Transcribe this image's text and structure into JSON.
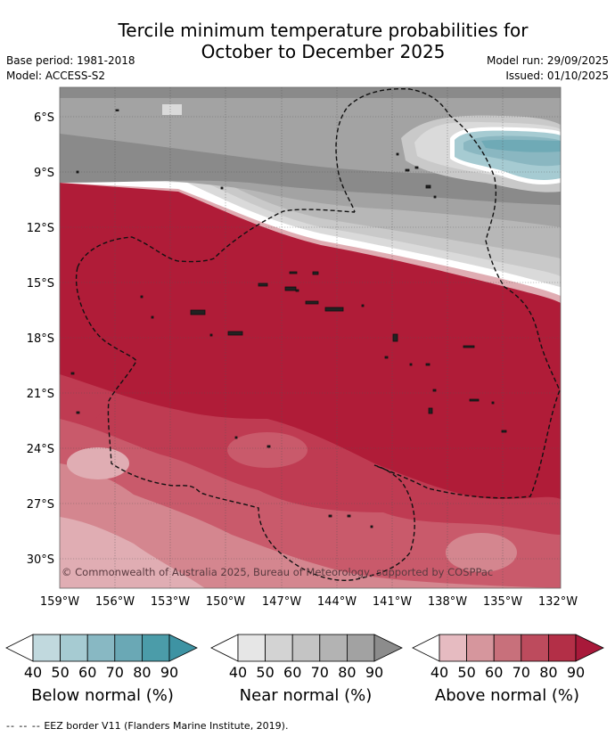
{
  "title": {
    "line1": "Tercile minimum temperature probabilities for",
    "line2": "October to December 2025"
  },
  "meta": {
    "base_period": "Base period: 1981-2018",
    "model": "Model: ACCESS-S2",
    "model_run": "Model run: 29/09/2025",
    "issued": "Issued: 01/10/2025"
  },
  "map": {
    "lat_labels": [
      "6°S",
      "9°S",
      "12°S",
      "15°S",
      "18°S",
      "21°S",
      "24°S",
      "27°S",
      "30°S"
    ],
    "lon_labels": [
      "159°W",
      "156°W",
      "153°W",
      "150°W",
      "147°W",
      "144°W",
      "141°W",
      "138°W",
      "135°W",
      "132°W"
    ],
    "copyright": "© Commonwealth of Australia 2025, Bureau of Meteorology, supported by COSPPac",
    "colors": {
      "above_90": "#b01c38",
      "above_80": "#bf3b52",
      "above_70": "#c95a6b",
      "above_60": "#d4868f",
      "above_50": "#e0adb3",
      "near_90": "#8a8a8a",
      "near_80": "#a3a3a3",
      "near_70": "#b7b7b7",
      "near_60": "#c9c9c9",
      "near_50": "#dadada",
      "below_60": "#8ab7c1",
      "below_70": "#6faab6",
      "below_80": "#4e9cab"
    }
  },
  "legends": [
    {
      "label": "Below normal (%)",
      "ticks": [
        "40",
        "50",
        "60",
        "70",
        "80",
        "90"
      ],
      "colors": [
        "#c1d9de",
        "#a6cbd2",
        "#88b8c3",
        "#6aa8b5",
        "#4b9ca9",
        "#3e93a3"
      ]
    },
    {
      "label": "Near normal (%)",
      "ticks": [
        "40",
        "50",
        "60",
        "70",
        "80",
        "90"
      ],
      "colors": [
        "#e6e6e6",
        "#d3d3d3",
        "#c4c4c4",
        "#b3b3b3",
        "#a2a2a2",
        "#8c8c8c"
      ]
    },
    {
      "label": "Above normal (%)",
      "ticks": [
        "40",
        "50",
        "60",
        "70",
        "80",
        "90"
      ],
      "colors": [
        "#e6bbc1",
        "#d6969d",
        "#c8707b",
        "#bd4b5d",
        "#b32f47",
        "#a8193a"
      ]
    }
  ],
  "footer": {
    "dash": "--  --  --",
    "text": "EEZ border V11 (Flanders Marine Institute, 2019)."
  }
}
